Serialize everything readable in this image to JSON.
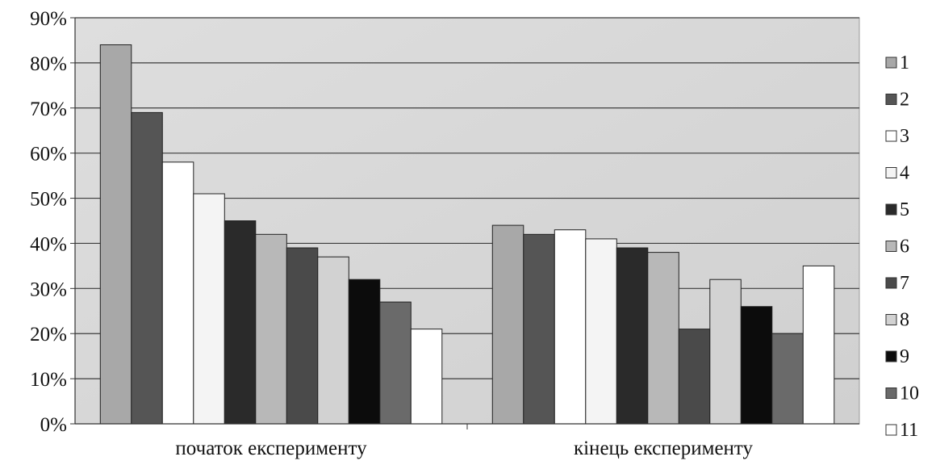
{
  "chart_data": {
    "type": "bar",
    "categories": [
      "початок експерименту",
      "кінець експерименту"
    ],
    "series": [
      {
        "name": "1",
        "values": [
          84,
          44
        ],
        "color": "#a8a8a8"
      },
      {
        "name": "2",
        "values": [
          69,
          42
        ],
        "color": "#555555"
      },
      {
        "name": "3",
        "values": [
          58,
          43
        ],
        "color": "#ffffff"
      },
      {
        "name": "4",
        "values": [
          51,
          41
        ],
        "color": "#f4f4f4"
      },
      {
        "name": "5",
        "values": [
          45,
          39
        ],
        "color": "#2a2a2a"
      },
      {
        "name": "6",
        "values": [
          42,
          38
        ],
        "color": "#b8b8b8"
      },
      {
        "name": "7",
        "values": [
          39,
          21
        ],
        "color": "#4a4a4a"
      },
      {
        "name": "8",
        "values": [
          37,
          32
        ],
        "color": "#d2d2d2"
      },
      {
        "name": "9",
        "values": [
          32,
          26
        ],
        "color": "#0c0c0c"
      },
      {
        "name": "10",
        "values": [
          27,
          20
        ],
        "color": "#6a6a6a"
      },
      {
        "name": "11",
        "values": [
          21,
          35
        ],
        "color": "#ffffff"
      }
    ],
    "yticks": [
      "0%",
      "10%",
      "20%",
      "30%",
      "40%",
      "50%",
      "60%",
      "70%",
      "80%",
      "90%"
    ],
    "ylim": [
      0,
      90
    ],
    "ystep": 10,
    "grid": true,
    "legend": "right"
  }
}
